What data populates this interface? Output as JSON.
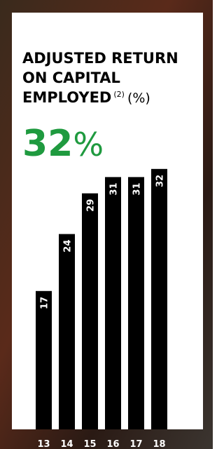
{
  "chart_data": {
    "type": "bar",
    "title_lines": [
      "ADJUSTED RETURN",
      "ON CAPITAL",
      "EMPLOYED"
    ],
    "title_note": "(2)",
    "title_unit": "(%)",
    "headline_value": 32,
    "headline_unit": "%",
    "headline_color": "#1f9a3f",
    "categories": [
      "13",
      "14",
      "15",
      "16",
      "17",
      "18"
    ],
    "values": [
      17,
      24,
      29,
      31,
      31,
      32
    ],
    "color": "#000000"
  }
}
